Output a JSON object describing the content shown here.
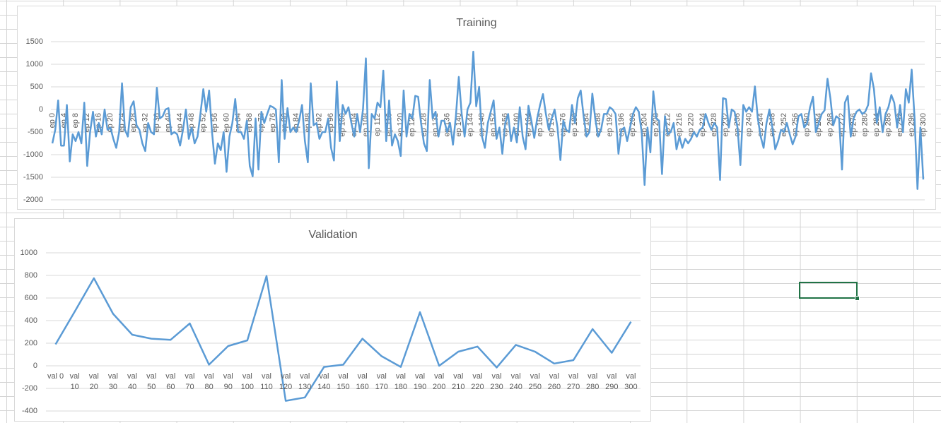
{
  "chart_data": [
    {
      "type": "line",
      "title": "Training",
      "categories": [
        "ep 0",
        null,
        null,
        null,
        "ep 4",
        null,
        null,
        null,
        "ep 8",
        null,
        null,
        null,
        "ep 12",
        null,
        null,
        null,
        "ep 16",
        null,
        null,
        null,
        "ep 20",
        null,
        null,
        null,
        "ep 24",
        null,
        null,
        null,
        "ep 28",
        null,
        null,
        null,
        "ep 32",
        null,
        null,
        null,
        "ep 36",
        null,
        null,
        null,
        "ep 40",
        null,
        null,
        null,
        "ep 44",
        null,
        null,
        null,
        "ep 48",
        null,
        null,
        null,
        "ep 52",
        null,
        null,
        null,
        "ep 56",
        null,
        null,
        null,
        "ep 60",
        null,
        null,
        null,
        "ep 64",
        null,
        null,
        null,
        "ep 68",
        null,
        null,
        null,
        "ep 72",
        null,
        null,
        null,
        "ep 76",
        null,
        null,
        null,
        "ep 80",
        null,
        null,
        null,
        "ep 84",
        null,
        null,
        null,
        "ep 88",
        null,
        null,
        null,
        "ep 92",
        null,
        null,
        null,
        "ep 96",
        null,
        null,
        null,
        "ep 100",
        null,
        null,
        null,
        "ep 104",
        null,
        null,
        null,
        "ep 108",
        null,
        null,
        null,
        "ep 112",
        null,
        null,
        null,
        "ep 116",
        null,
        null,
        null,
        "ep 120",
        null,
        null,
        null,
        "ep 124",
        null,
        null,
        null,
        "ep 128",
        null,
        null,
        null,
        "ep 132",
        null,
        null,
        null,
        "ep 136",
        null,
        null,
        null,
        "ep 140",
        null,
        null,
        null,
        "ep 144",
        null,
        null,
        null,
        "ep 148",
        null,
        null,
        null,
        "ep 152",
        null,
        null,
        null,
        "ep 156",
        null,
        null,
        null,
        "ep 160",
        null,
        null,
        null,
        "ep 164",
        null,
        null,
        null,
        "ep 168",
        null,
        null,
        null,
        "ep 172",
        null,
        null,
        null,
        "ep 176",
        null,
        null,
        null,
        "ep 180",
        null,
        null,
        null,
        "ep 184",
        null,
        null,
        null,
        "ep 188",
        null,
        null,
        null,
        "ep 192",
        null,
        null,
        null,
        "ep 196",
        null,
        null,
        null,
        "ep 200",
        null,
        null,
        null,
        "ep 204",
        null,
        null,
        null,
        "ep 208",
        null,
        null,
        null,
        "ep 212",
        null,
        null,
        null,
        "ep 216",
        null,
        null,
        null,
        "ep 220",
        null,
        null,
        null,
        "ep 224",
        null,
        null,
        null,
        "ep 228",
        null,
        null,
        null,
        "ep 232",
        null,
        null,
        null,
        "ep 236",
        null,
        null,
        null,
        "ep 240",
        null,
        null,
        null,
        "ep 244",
        null,
        null,
        null,
        "ep 248",
        null,
        null,
        null,
        "ep 252",
        null,
        null,
        null,
        "ep 256",
        null,
        null,
        null,
        "ep 260",
        null,
        null,
        null,
        "ep 264",
        null,
        null,
        null,
        "ep 268",
        null,
        null,
        null,
        "ep 272",
        null,
        null,
        null,
        "ep 276",
        null,
        null,
        null,
        "ep 280",
        null,
        null,
        null,
        "ep 284",
        null,
        null,
        null,
        "ep 288",
        null,
        null,
        null,
        "ep 292",
        null,
        null,
        null,
        "ep 296",
        null,
        null,
        null,
        "ep 300"
      ],
      "values": [
        -750,
        -450,
        200,
        -800,
        -800,
        100,
        -1150,
        -550,
        -700,
        -500,
        -750,
        150,
        -1250,
        -500,
        -50,
        -600,
        -300,
        -550,
        0,
        -450,
        -400,
        -650,
        -850,
        -500,
        580,
        -450,
        -600,
        50,
        180,
        -350,
        -450,
        -750,
        -920,
        -300,
        -500,
        -550,
        480,
        -200,
        -150,
        0,
        30,
        -550,
        -500,
        -550,
        -800,
        -450,
        0,
        -650,
        -400,
        -750,
        -600,
        -100,
        450,
        -50,
        420,
        -500,
        -1200,
        -750,
        -900,
        -500,
        -1380,
        -600,
        -300,
        230,
        -500,
        -500,
        -650,
        -250,
        -1250,
        -1480,
        -200,
        -1330,
        -50,
        -300,
        -100,
        80,
        50,
        0,
        -1170,
        650,
        -650,
        30,
        -500,
        -400,
        -500,
        -250,
        100,
        -700,
        -1170,
        580,
        -350,
        -300,
        -650,
        -500,
        -500,
        -200,
        -850,
        -1130,
        620,
        -700,
        100,
        -100,
        50,
        -300,
        -600,
        -100,
        -500,
        0,
        1130,
        -1300,
        -100,
        -200,
        150,
        50,
        860,
        -700,
        200,
        -800,
        -550,
        -700,
        -1030,
        420,
        -600,
        -100,
        -200,
        300,
        280,
        -300,
        -750,
        -920,
        650,
        -200,
        -50,
        -600,
        -250,
        -250,
        -500,
        -300,
        -780,
        -150,
        720,
        -100,
        -600,
        0,
        150,
        1280,
        70,
        500,
        -600,
        -850,
        -300,
        -50,
        200,
        -650,
        -400,
        -980,
        -300,
        -100,
        -700,
        -400,
        -730,
        50,
        -600,
        -880,
        80,
        -250,
        -630,
        -200,
        100,
        340,
        -100,
        -450,
        -200,
        0,
        -400,
        -1120,
        -250,
        -450,
        -500,
        100,
        -300,
        250,
        420,
        -150,
        -600,
        -500,
        350,
        -200,
        -600,
        -450,
        -100,
        -100,
        50,
        0,
        -100,
        -980,
        -450,
        -400,
        -700,
        -400,
        -100,
        50,
        -50,
        -500,
        -1670,
        -400,
        -950,
        400,
        -200,
        -250,
        -1430,
        -150,
        -550,
        -500,
        -300,
        -880,
        -600,
        -850,
        -650,
        -750,
        -650,
        -500,
        -600,
        -450,
        -400,
        -100,
        -300,
        -450,
        -300,
        -400,
        -1560,
        250,
        230,
        -400,
        0,
        -50,
        -400,
        -1230,
        100,
        -50,
        50,
        -50,
        510,
        -200,
        -600,
        -850,
        -300,
        0,
        -400,
        -880,
        -700,
        -450,
        -500,
        -300,
        -550,
        -770,
        -600,
        -150,
        -100,
        -400,
        -300,
        50,
        280,
        -500,
        -300,
        -100,
        -20,
        680,
        250,
        -350,
        -150,
        -200,
        -1330,
        150,
        300,
        -600,
        -200,
        -50,
        0,
        -100,
        -50,
        100,
        800,
        450,
        -300,
        50,
        -500,
        -100,
        50,
        320,
        150,
        -400,
        100,
        -500,
        450,
        150,
        880,
        -200,
        -1760,
        -400,
        -1550
      ],
      "color": "#5b9bd5",
      "ylim": [
        -2000,
        1500
      ],
      "yticks": [
        -2000,
        -1500,
        -1000,
        -500,
        0,
        500,
        1000,
        1500
      ],
      "grid": true
    },
    {
      "type": "line",
      "title": "Validation",
      "categories": [
        "val 0",
        "val 10",
        "val 20",
        "val 30",
        "val 40",
        "val 50",
        "val 60",
        "val 70",
        "val 80",
        "val 90",
        "val 100",
        "val 110",
        "val 120",
        "val 130",
        "val 140",
        "val 150",
        "val 160",
        "val 170",
        "val 180",
        "val 190",
        "val 200",
        "val 210",
        "val 220",
        "val 230",
        "val 240",
        "val 250",
        "val 260",
        "val 270",
        "val 280",
        "val 290",
        "val 300"
      ],
      "values": [
        190,
        480,
        775,
        460,
        275,
        240,
        230,
        375,
        10,
        175,
        225,
        795,
        -310,
        -280,
        -10,
        10,
        240,
        85,
        -10,
        475,
        0,
        125,
        170,
        -15,
        185,
        125,
        20,
        50,
        325,
        115,
        390
      ],
      "color": "#5b9bd5",
      "ylim": [
        -400,
        1000
      ],
      "yticks": [
        -400,
        -200,
        0,
        200,
        400,
        600,
        800,
        1000
      ],
      "grid": true
    }
  ]
}
